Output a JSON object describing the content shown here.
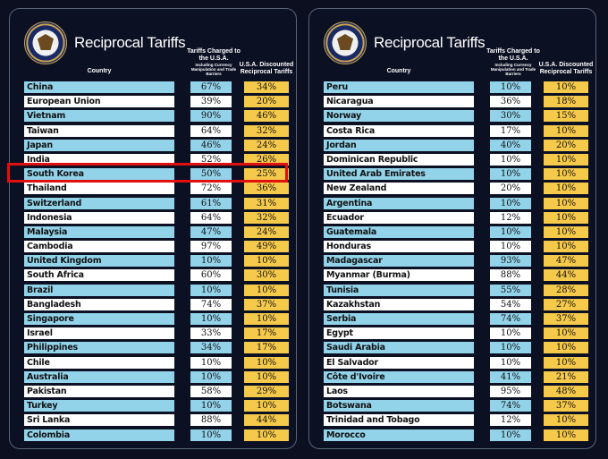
{
  "title": "Reciprocal Tariffs",
  "headers": {
    "country": "Country",
    "charged_main": "Tariffs Charged to the U.S.A.",
    "charged_sub": "Including Currency Manipulation and Trade Barriers",
    "discounted": "U.S.A. Discounted Reciprocal Tariffs"
  },
  "colors": {
    "blue_row": "#92d3ea",
    "white_row": "#ffffff",
    "gold": "#f5c94a",
    "highlight": "#e01010"
  },
  "icons": {
    "seal": "presidential-seal-icon"
  },
  "highlighted_country": "South Korea",
  "left_table": [
    {
      "country": "China",
      "charged": "67%",
      "discounted": "34%"
    },
    {
      "country": "European Union",
      "charged": "39%",
      "discounted": "20%"
    },
    {
      "country": "Vietnam",
      "charged": "90%",
      "discounted": "46%"
    },
    {
      "country": "Taiwan",
      "charged": "64%",
      "discounted": "32%"
    },
    {
      "country": "Japan",
      "charged": "46%",
      "discounted": "24%"
    },
    {
      "country": "India",
      "charged": "52%",
      "discounted": "26%"
    },
    {
      "country": "South Korea",
      "charged": "50%",
      "discounted": "25%"
    },
    {
      "country": "Thailand",
      "charged": "72%",
      "discounted": "36%"
    },
    {
      "country": "Switzerland",
      "charged": "61%",
      "discounted": "31%"
    },
    {
      "country": "Indonesia",
      "charged": "64%",
      "discounted": "32%"
    },
    {
      "country": "Malaysia",
      "charged": "47%",
      "discounted": "24%"
    },
    {
      "country": "Cambodia",
      "charged": "97%",
      "discounted": "49%"
    },
    {
      "country": "United Kingdom",
      "charged": "10%",
      "discounted": "10%"
    },
    {
      "country": "South Africa",
      "charged": "60%",
      "discounted": "30%"
    },
    {
      "country": "Brazil",
      "charged": "10%",
      "discounted": "10%"
    },
    {
      "country": "Bangladesh",
      "charged": "74%",
      "discounted": "37%"
    },
    {
      "country": "Singapore",
      "charged": "10%",
      "discounted": "10%"
    },
    {
      "country": "Israel",
      "charged": "33%",
      "discounted": "17%"
    },
    {
      "country": "Philippines",
      "charged": "34%",
      "discounted": "17%"
    },
    {
      "country": "Chile",
      "charged": "10%",
      "discounted": "10%"
    },
    {
      "country": "Australia",
      "charged": "10%",
      "discounted": "10%"
    },
    {
      "country": "Pakistan",
      "charged": "58%",
      "discounted": "29%"
    },
    {
      "country": "Turkey",
      "charged": "10%",
      "discounted": "10%"
    },
    {
      "country": "Sri Lanka",
      "charged": "88%",
      "discounted": "44%"
    },
    {
      "country": "Colombia",
      "charged": "10%",
      "discounted": "10%"
    }
  ],
  "right_table": [
    {
      "country": "Peru",
      "charged": "10%",
      "discounted": "10%"
    },
    {
      "country": "Nicaragua",
      "charged": "36%",
      "discounted": "18%"
    },
    {
      "country": "Norway",
      "charged": "30%",
      "discounted": "15%"
    },
    {
      "country": "Costa Rica",
      "charged": "17%",
      "discounted": "10%"
    },
    {
      "country": "Jordan",
      "charged": "40%",
      "discounted": "20%"
    },
    {
      "country": "Dominican Republic",
      "charged": "10%",
      "discounted": "10%"
    },
    {
      "country": "United Arab Emirates",
      "charged": "10%",
      "discounted": "10%"
    },
    {
      "country": "New Zealand",
      "charged": "20%",
      "discounted": "10%"
    },
    {
      "country": "Argentina",
      "charged": "10%",
      "discounted": "10%"
    },
    {
      "country": "Ecuador",
      "charged": "12%",
      "discounted": "10%"
    },
    {
      "country": "Guatemala",
      "charged": "10%",
      "discounted": "10%"
    },
    {
      "country": "Honduras",
      "charged": "10%",
      "discounted": "10%"
    },
    {
      "country": "Madagascar",
      "charged": "93%",
      "discounted": "47%"
    },
    {
      "country": "Myanmar (Burma)",
      "charged": "88%",
      "discounted": "44%"
    },
    {
      "country": "Tunisia",
      "charged": "55%",
      "discounted": "28%"
    },
    {
      "country": "Kazakhstan",
      "charged": "54%",
      "discounted": "27%"
    },
    {
      "country": "Serbia",
      "charged": "74%",
      "discounted": "37%"
    },
    {
      "country": "Egypt",
      "charged": "10%",
      "discounted": "10%"
    },
    {
      "country": "Saudi Arabia",
      "charged": "10%",
      "discounted": "10%"
    },
    {
      "country": "El Salvador",
      "charged": "10%",
      "discounted": "10%"
    },
    {
      "country": "Côte d'Ivoire",
      "charged": "41%",
      "discounted": "21%"
    },
    {
      "country": "Laos",
      "charged": "95%",
      "discounted": "48%"
    },
    {
      "country": "Botswana",
      "charged": "74%",
      "discounted": "37%"
    },
    {
      "country": "Trinidad and Tobago",
      "charged": "12%",
      "discounted": "10%"
    },
    {
      "country": "Morocco",
      "charged": "10%",
      "discounted": "10%"
    }
  ]
}
